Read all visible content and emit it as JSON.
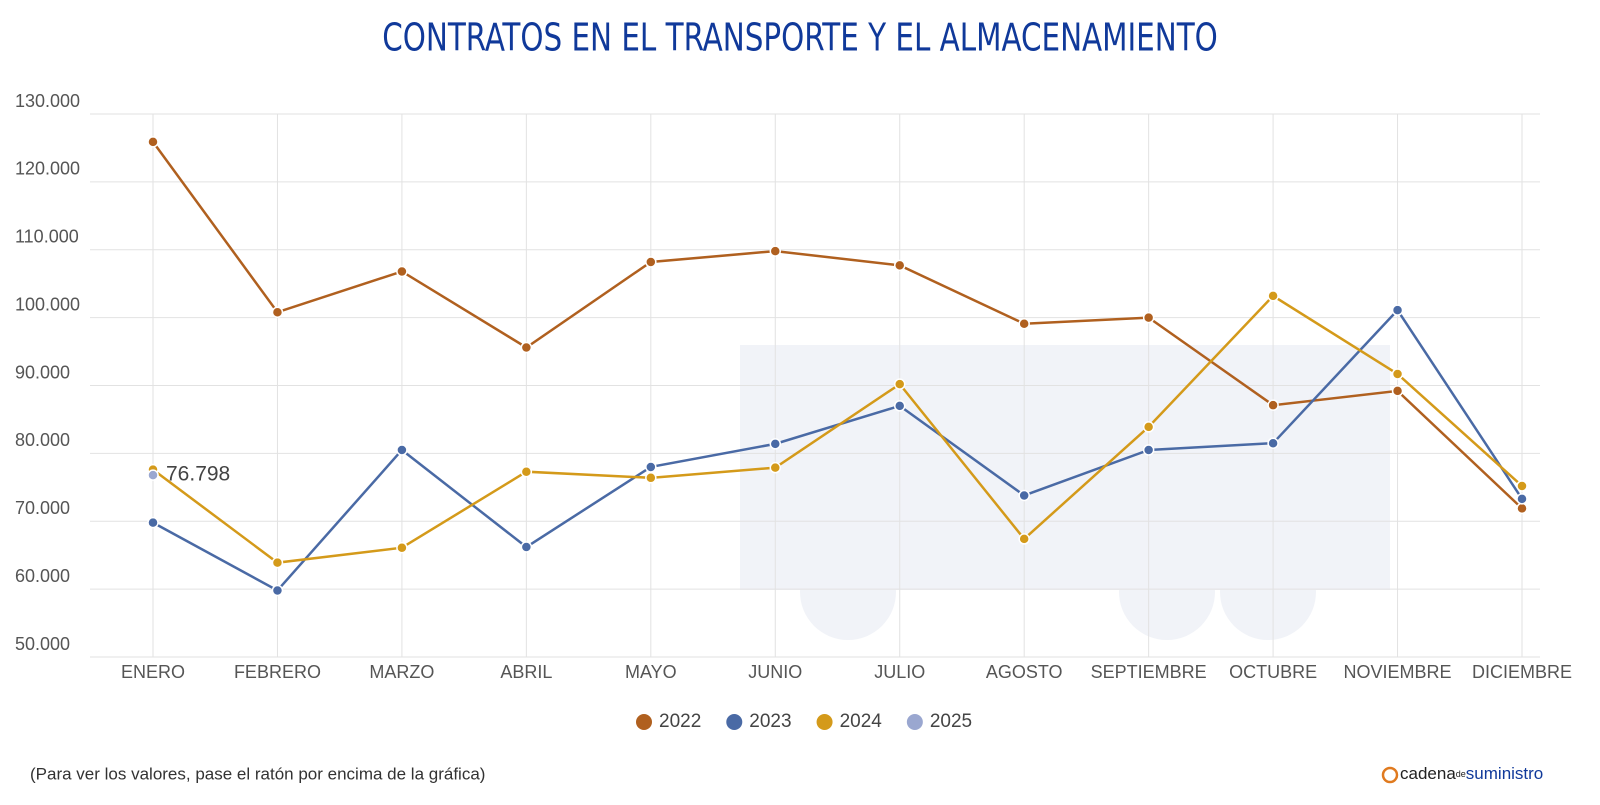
{
  "chart_data": {
    "type": "line",
    "title": "CONTRATOS EN EL TRANSPORTE Y EL ALMACENAMIENTO",
    "categories": [
      "ENERO",
      "FEBRERO",
      "MARZO",
      "ABRIL",
      "MAYO",
      "JUNIO",
      "JULIO",
      "AGOSTO",
      "SEPTIEMBRE",
      "OCTUBRE",
      "NOVIEMBRE",
      "DICIEMBRE"
    ],
    "series": [
      {
        "name": "2022",
        "color": "#b0601f",
        "values": [
          125900,
          100800,
          106800,
          95600,
          108200,
          109800,
          107700,
          99100,
          100000,
          87100,
          89200,
          71900
        ]
      },
      {
        "name": "2023",
        "color": "#4a6aa5",
        "values": [
          69800,
          59800,
          80500,
          66200,
          78000,
          81400,
          87000,
          73800,
          80500,
          81500,
          101100,
          73300
        ]
      },
      {
        "name": "2024",
        "color": "#d49a1a",
        "values": [
          77600,
          63900,
          66100,
          77300,
          76400,
          77900,
          90200,
          67400,
          83900,
          103200,
          91700,
          75200
        ]
      },
      {
        "name": "2025",
        "color": "#9aa7d0",
        "values": [
          76798,
          null,
          null,
          null,
          null,
          null,
          null,
          null,
          null,
          null,
          null,
          null
        ],
        "value_labels": [
          "76.798",
          null,
          null,
          null,
          null,
          null,
          null,
          null,
          null,
          null,
          null,
          null
        ]
      }
    ],
    "ylim": [
      50000,
      130000
    ],
    "yticks": [
      {
        "value": 50000,
        "label": "50.000"
      },
      {
        "value": 60000,
        "label": "60.000"
      },
      {
        "value": 70000,
        "label": "70.000"
      },
      {
        "value": 80000,
        "label": "80.000"
      },
      {
        "value": 90000,
        "label": "90.000"
      },
      {
        "value": 100000,
        "label": "100.000"
      },
      {
        "value": 110000,
        "label": "110.000"
      },
      {
        "value": 120000,
        "label": "120.000"
      },
      {
        "value": 130000,
        "label": "130.000"
      }
    ],
    "grid": true,
    "note": "(Para ver los valores, pase el ratón por encima de la gráfica)",
    "brand": {
      "main": "cadena",
      "small": "de",
      "tail": "suministro"
    }
  }
}
